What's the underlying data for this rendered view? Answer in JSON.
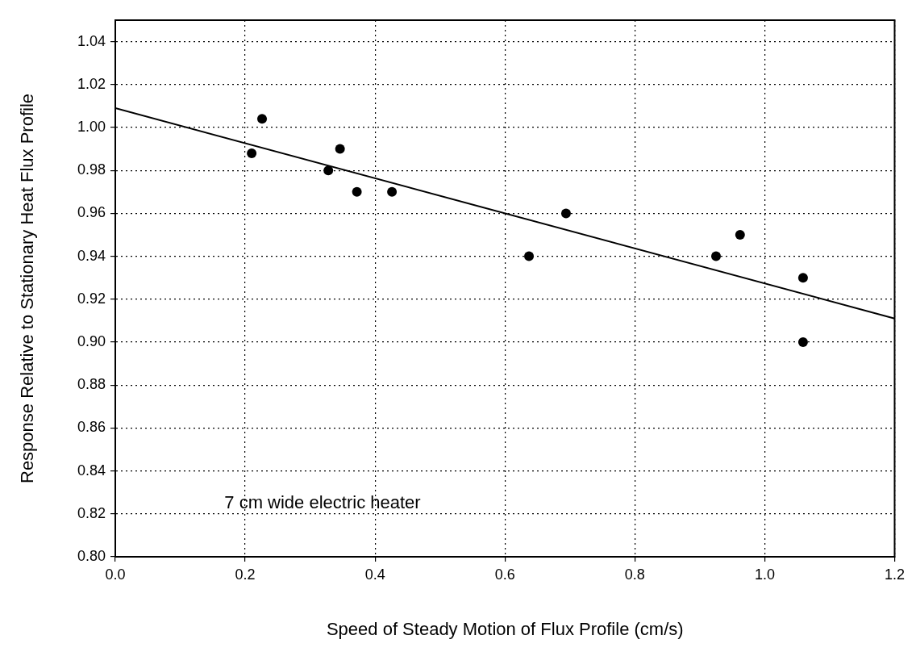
{
  "chart_data": {
    "type": "scatter",
    "xlabel": "Speed of Steady Motion of Flux Profile (cm/s)",
    "ylabel": "Response Relative to Stationary Heat Flux Profile",
    "annotations": [
      "7 cm wide electric heater"
    ],
    "x": [
      0.21,
      0.226,
      0.328,
      0.346,
      0.372,
      0.426,
      0.637,
      0.694,
      0.925,
      0.962,
      1.059,
      1.059
    ],
    "series": [
      {
        "color": "#000000",
        "values": [
          0.988,
          1.004,
          0.98,
          0.99,
          0.97,
          0.97,
          0.94,
          0.96,
          0.94,
          0.95,
          0.93,
          0.9
        ],
        "marker": "circle"
      },
      {
        "type": "line",
        "color": "#000000",
        "x": [
          0,
          1.2
        ],
        "values": [
          1.009,
          0.911
        ],
        "marker": "none",
        "line_style": "solid"
      }
    ],
    "xlim": [
      0,
      1.2
    ],
    "ylim": [
      0.8,
      1.05
    ],
    "xticks": [
      {
        "value": 0,
        "label": "0.0"
      },
      {
        "value": 0.2,
        "label": "0.2"
      },
      {
        "value": 0.4,
        "label": "0.4"
      },
      {
        "value": 0.6,
        "label": "0.6"
      },
      {
        "value": 0.8,
        "label": "0.8"
      },
      {
        "value": 1,
        "label": "1.0"
      },
      {
        "value": 1.2,
        "label": "1.2"
      }
    ],
    "yticks": [
      {
        "value": 0.8,
        "label": "0.80"
      },
      {
        "value": 0.82,
        "label": "0.82"
      },
      {
        "value": 0.84,
        "label": "0.84"
      },
      {
        "value": 0.86,
        "label": "0.86"
      },
      {
        "value": 0.88,
        "label": "0.88"
      },
      {
        "value": 0.9,
        "label": "0.90"
      },
      {
        "value": 0.92,
        "label": "0.92"
      },
      {
        "value": 0.94,
        "label": "0.94"
      },
      {
        "value": 0.96,
        "label": "0.96"
      },
      {
        "value": 0.98,
        "label": "0.98"
      },
      {
        "value": 1,
        "label": "1.00"
      },
      {
        "value": 1.02,
        "label": "1.02"
      },
      {
        "value": 1.04,
        "label": "1.04"
      }
    ],
    "grid": true
  }
}
